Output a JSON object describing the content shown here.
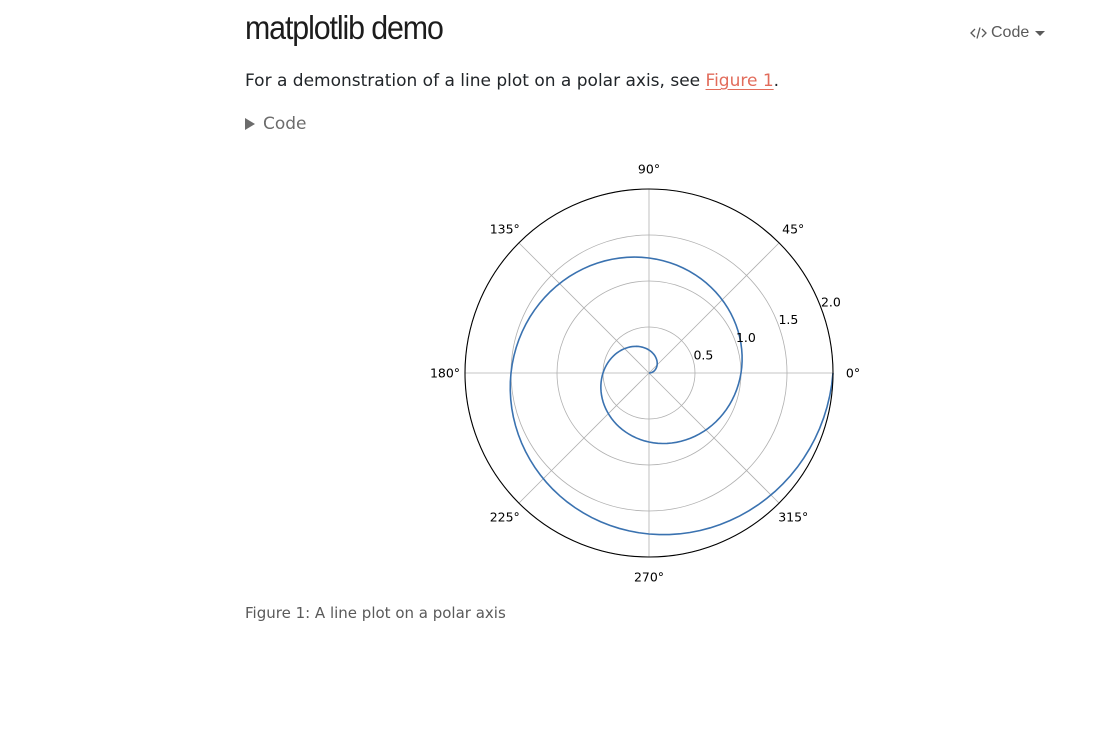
{
  "header": {
    "title": "matplotlib demo",
    "code_tools_label": "Code",
    "code_icon": "code-brackets-icon"
  },
  "intro": {
    "text_before": "For a demonstration of a line plot on a polar axis, see ",
    "link_text": "Figure 1",
    "text_after": "."
  },
  "code_fold": {
    "label": "Code",
    "icon": "triangle-right-icon"
  },
  "figure": {
    "caption": "Figure 1: A line plot on a polar axis"
  },
  "chart_data": {
    "type": "line",
    "projection": "polar",
    "title": "",
    "xlabel": "",
    "ylabel": "",
    "theta_ticks": [
      "0°",
      "45°",
      "90°",
      "135°",
      "180°",
      "225°",
      "270°",
      "315°"
    ],
    "theta_tick_degrees": [
      0,
      45,
      90,
      135,
      180,
      225,
      270,
      315
    ],
    "r_ticks": [
      0.5,
      1.0,
      1.5,
      2.0
    ],
    "r_tick_labels": [
      "0.5",
      "1.0",
      "1.5",
      "2.0"
    ],
    "rlim": [
      0,
      2.0
    ],
    "grid": true,
    "series": [
      {
        "r_range": [
          0,
          2.0
        ],
        "r_step": 0.01,
        "theta_formula": "2*pi*r",
        "color": "#3a72b0"
      }
    ]
  }
}
